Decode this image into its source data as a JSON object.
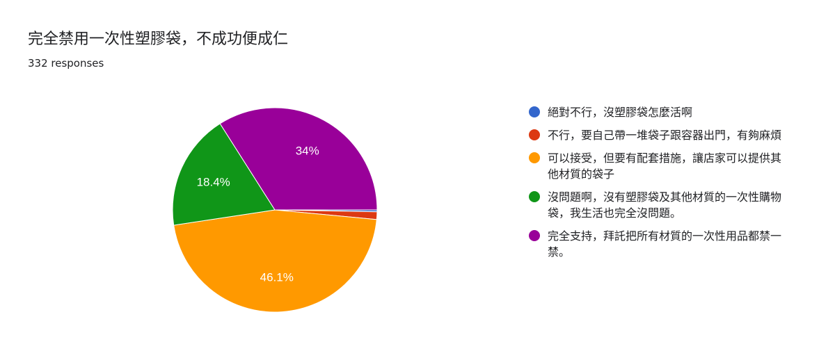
{
  "title": "完全禁用一次性塑膠袋，不成功便成仁",
  "subtitle": "332 responses",
  "chart_data": {
    "type": "pie",
    "labels": [
      "絕對不行，沒塑膠袋怎麼活啊",
      "不行，要自己帶一堆袋子跟容器出門，有夠麻煩",
      "可以接受，但要有配套措施，讓店家可以提供其他材質的袋子",
      "沒問題啊，沒有塑膠袋及其他材質的一次性購物袋，我生活也完全沒問題。",
      "完全支持，拜託把所有材質的一次性用品都禁一禁。"
    ],
    "values": [
      0.3,
      1.2,
      46.1,
      18.4,
      34.0
    ],
    "data_labels": [
      "",
      "",
      "46.1%",
      "18.4%",
      "34%"
    ],
    "colors": [
      "#3366cc",
      "#dc3912",
      "#ff9900",
      "#109618",
      "#990099"
    ],
    "legend_position": "right"
  }
}
